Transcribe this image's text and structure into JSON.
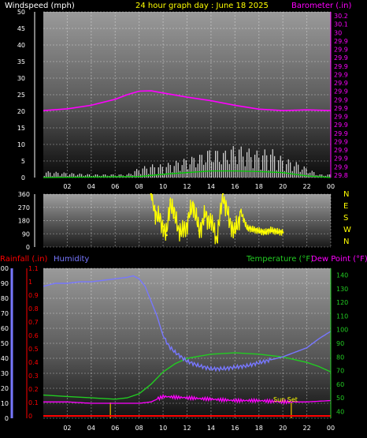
{
  "header": {
    "left_label": "Windspeed (mph)",
    "center_label": "24 hour graph day : June 18 2025",
    "right_label": "Barometer (.in)"
  },
  "colors": {
    "wind": "#ffffff",
    "gust_bars": "#ffffff",
    "wind_avg": "#00cc00",
    "barometer": "#ff00ff",
    "direction": "#ffff00",
    "humidity": "#7777ff",
    "temperature": "#22cc22",
    "dewpoint": "#ff00ff",
    "rainfall": "#ff0000",
    "sun": "#c8a000"
  },
  "x_tick_labels": [
    "02",
    "04",
    "06",
    "08",
    "10",
    "12",
    "14",
    "16",
    "18",
    "20",
    "22",
    "00"
  ],
  "chart_data": [
    {
      "type": "line",
      "name": "wind-barometer",
      "x_range": [
        0,
        24
      ],
      "y_left": {
        "label": "Windspeed (mph)",
        "ticks": [
          "0",
          "5",
          "10",
          "15",
          "20",
          "25",
          "30",
          "35",
          "40",
          "45",
          "50"
        ],
        "range": [
          0,
          50
        ]
      },
      "y_right": {
        "label": "Barometer (.in)",
        "ticks": [
          "29.8",
          "29.9",
          "29.9",
          "29.9",
          "29.9",
          "29.9",
          "29.9",
          "29.9",
          "29.9",
          "29.9",
          "29.9",
          "29.9",
          "29.9",
          "29.9",
          "29.9",
          "29.9",
          "29.9",
          "30",
          "30.1",
          "30.2"
        ],
        "range": [
          29.75,
          30.22
        ]
      },
      "barometer": {
        "x": [
          0,
          2,
          4,
          6,
          7,
          8,
          9,
          10,
          12,
          14,
          16,
          18,
          20,
          22,
          24
        ],
        "y": [
          29.94,
          29.945,
          29.955,
          29.972,
          29.985,
          29.995,
          29.996,
          29.99,
          29.978,
          29.968,
          29.955,
          29.944,
          29.94,
          29.942,
          29.94
        ]
      },
      "wind_max_envelope": {
        "x": [
          0,
          4,
          6,
          7,
          8,
          9,
          10,
          11,
          12,
          13,
          14,
          15,
          16,
          17,
          18,
          19,
          20,
          21,
          22,
          23,
          24
        ],
        "y": [
          2,
          1,
          1,
          1,
          3,
          4,
          4,
          5,
          6,
          7,
          9,
          8,
          10,
          9,
          8,
          9,
          6,
          5,
          3,
          1,
          1
        ]
      },
      "wind_avg": {
        "x": [
          0,
          8,
          10,
          12,
          14,
          16,
          18,
          20,
          22,
          24
        ],
        "y": [
          0,
          0.3,
          1,
          1.5,
          2,
          2,
          1.8,
          1.5,
          0.5,
          0
        ]
      }
    },
    {
      "type": "scatter",
      "name": "wind-direction",
      "x_range": [
        0,
        24
      ],
      "y_left": {
        "ticks": [
          "0",
          "90",
          "180",
          "270",
          "360"
        ],
        "range": [
          0,
          360
        ]
      },
      "y_right": {
        "ticks": [
          "N",
          "W",
          "S",
          "E",
          "N"
        ]
      },
      "points": {
        "x": [
          9.0,
          9.3,
          9.6,
          10.0,
          10.3,
          10.6,
          11.0,
          11.5,
          12.0,
          12.5,
          13.0,
          13.5,
          14.0,
          14.5,
          15.0,
          15.5,
          16.0,
          16.5,
          17.0,
          17.5,
          18.0,
          18.5,
          19.0,
          19.5,
          20.0
        ],
        "y": [
          360,
          250,
          200,
          140,
          80,
          320,
          200,
          90,
          150,
          300,
          110,
          210,
          170,
          60,
          360,
          180,
          100,
          240,
          130,
          120,
          110,
          100,
          115,
          105,
          100
        ]
      }
    },
    {
      "type": "line",
      "name": "temp-humidity-rain",
      "x_range": [
        0,
        24
      ],
      "labels": {
        "rainfall": "Rainfall (.in)",
        "humidity": "Humidity",
        "temperature": "Temperature (°F)",
        "dewpoint": "Dew Point (°F)"
      },
      "y_humidity": {
        "ticks": [
          "0",
          "10",
          "20",
          "30",
          "40",
          "50",
          "60",
          "70",
          "80",
          "90",
          "100"
        ],
        "range": [
          0,
          100
        ]
      },
      "y_rain": {
        "ticks": [
          "0",
          "0.1",
          "0.2",
          "0.3",
          "0.4",
          "0.5",
          "0.6",
          "0.7",
          "0.8",
          "0.9",
          "1",
          "1.1"
        ],
        "range": [
          0,
          1.1
        ]
      },
      "y_temp": {
        "ticks": [
          "40",
          "50",
          "60",
          "70",
          "80",
          "90",
          "100",
          "110",
          "120",
          "130",
          "140"
        ],
        "range": [
          35,
          145
        ]
      },
      "humidity": {
        "x": [
          0,
          1,
          2,
          3,
          4,
          5,
          6,
          7,
          7.5,
          8,
          8.5,
          9,
          9.5,
          10,
          10.5,
          11,
          12,
          13,
          14,
          15,
          16,
          17,
          18,
          19,
          20,
          21,
          22,
          23,
          24
        ],
        "y": [
          88,
          90,
          90,
          91,
          91,
          92,
          93,
          94,
          95,
          93,
          88,
          78,
          68,
          55,
          48,
          44,
          38,
          35,
          33,
          33,
          34,
          35,
          37,
          39,
          41,
          44,
          47,
          53,
          58
        ]
      },
      "temperature": {
        "x": [
          0,
          2,
          4,
          6,
          7,
          8,
          9,
          10,
          11,
          12,
          14,
          16,
          18,
          20,
          22,
          23,
          24
        ],
        "y": [
          52,
          51,
          50,
          49,
          50,
          53,
          60,
          69,
          75,
          79,
          82,
          83,
          82,
          80,
          76,
          73,
          69
        ]
      },
      "dewpoint": {
        "x": [
          0,
          2,
          4,
          6,
          8,
          9,
          10,
          12,
          14,
          16,
          18,
          20,
          22,
          24
        ],
        "y": [
          47,
          47,
          46,
          46,
          46,
          47,
          51,
          50,
          49,
          48,
          48,
          47,
          47,
          48
        ]
      },
      "rainfall": {
        "x": [
          0,
          24
        ],
        "y": [
          0,
          0
        ]
      },
      "sun_rise_hour": 5.6,
      "sun_set_hour": 20.7,
      "sun_set_label": "Sun Set"
    }
  ]
}
